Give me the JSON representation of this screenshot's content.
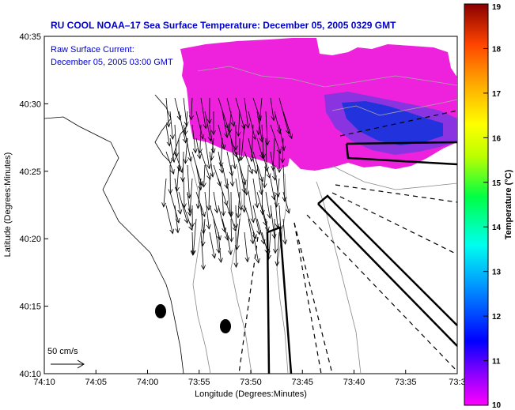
{
  "chart_data": {
    "type": "heatmap",
    "title": "RU COOL   NOAA–17  Sea Surface Temperature:  December 05, 2005 0329 GMT",
    "annotation_line1": "Raw Surface Current:",
    "annotation_line2": "December 05, 2005 03:00 GMT",
    "scale_label": "50 cm/s",
    "xlabel": "Longitude (Degrees:Minutes)",
    "ylabel": "Latitude (Degrees:Minutes)",
    "x_ticks": [
      "74:10",
      "74:05",
      "74:00",
      "73:55",
      "73:50",
      "73:45",
      "73:40",
      "73:35",
      "73:3"
    ],
    "y_ticks": [
      "40:35",
      "40:30",
      "40:25",
      "40:20",
      "40:15",
      "40:10"
    ],
    "xlim": [
      -74.1667,
      -73.5
    ],
    "ylim": [
      40.1667,
      40.5833
    ],
    "colorbar": {
      "label": "Temperature (°C)",
      "min": 10,
      "max": 19,
      "ticks": [
        "10",
        "11",
        "12",
        "13",
        "14",
        "15",
        "16",
        "17",
        "18",
        "19"
      ]
    },
    "grid": false,
    "colors": {
      "warm_region": "#ee22dd",
      "cool_region": "#2233dd",
      "title": "#0000cc"
    }
  }
}
